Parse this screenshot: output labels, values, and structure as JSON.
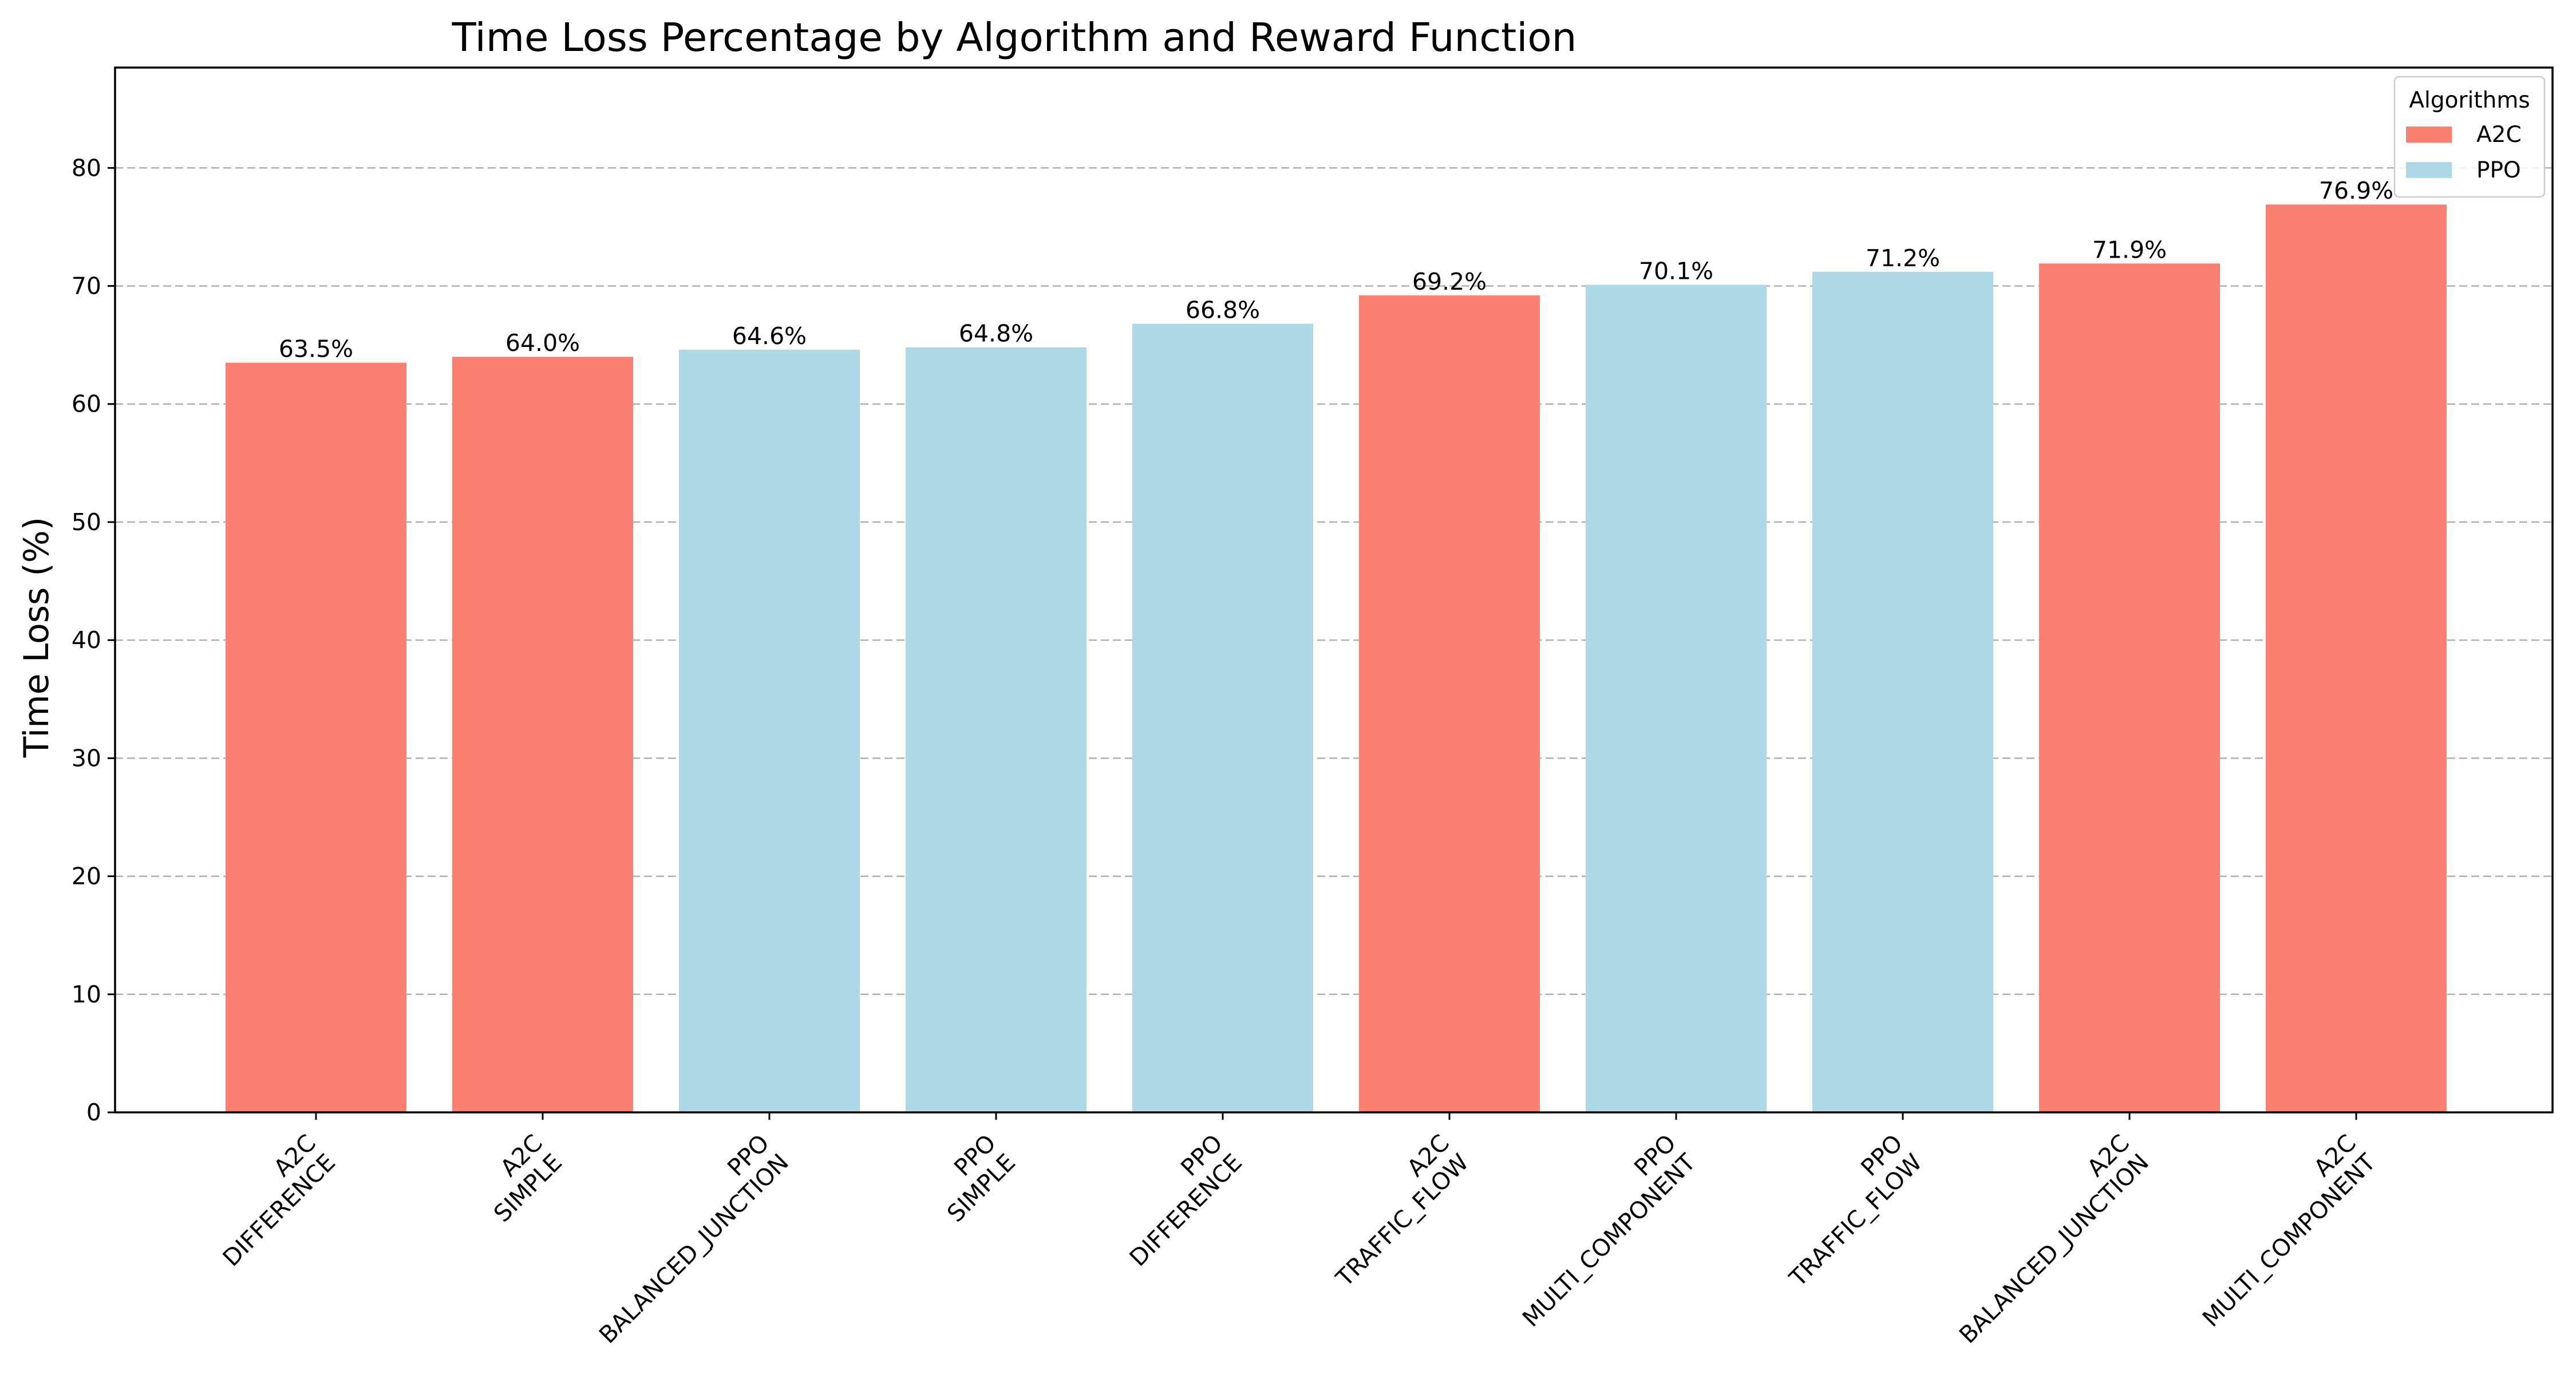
{
  "chart_data": {
    "type": "bar",
    "title": "Time Loss Percentage by Algorithm and Reward Function",
    "xlabel": "",
    "ylabel": "Time Loss (%)",
    "ylim": [
      0,
      88.5
    ],
    "yticks": [
      0,
      10,
      20,
      30,
      40,
      50,
      60,
      70,
      80
    ],
    "grid": "y-dashed",
    "legend": {
      "title": "Algorithms",
      "placement": "top-right",
      "entries": [
        {
          "name": "A2C",
          "color": "#fa8072"
        },
        {
          "name": "PPO",
          "color": "#add8e6"
        }
      ]
    },
    "colors": {
      "A2C": "#fa8072",
      "PPO": "#add8e6"
    },
    "categories": [
      {
        "algorithm": "A2C",
        "reward": "DIFFERENCE"
      },
      {
        "algorithm": "A2C",
        "reward": "SIMPLE"
      },
      {
        "algorithm": "PPO",
        "reward": "BALANCED_JUNCTION"
      },
      {
        "algorithm": "PPO",
        "reward": "SIMPLE"
      },
      {
        "algorithm": "PPO",
        "reward": "DIFFERENCE"
      },
      {
        "algorithm": "A2C",
        "reward": "TRAFFIC_FLOW"
      },
      {
        "algorithm": "PPO",
        "reward": "MULTI_COMPONENT"
      },
      {
        "algorithm": "PPO",
        "reward": "TRAFFIC_FLOW"
      },
      {
        "algorithm": "A2C",
        "reward": "BALANCED_JUNCTION"
      },
      {
        "algorithm": "A2C",
        "reward": "MULTI_COMPONENT"
      }
    ],
    "values": [
      63.5,
      64.0,
      64.6,
      64.8,
      66.8,
      69.2,
      70.1,
      71.2,
      71.9,
      76.9
    ],
    "data_labels": [
      "63.5%",
      "64.0%",
      "64.6%",
      "64.8%",
      "66.8%",
      "69.2%",
      "70.1%",
      "71.2%",
      "71.9%",
      "76.9%"
    ]
  }
}
